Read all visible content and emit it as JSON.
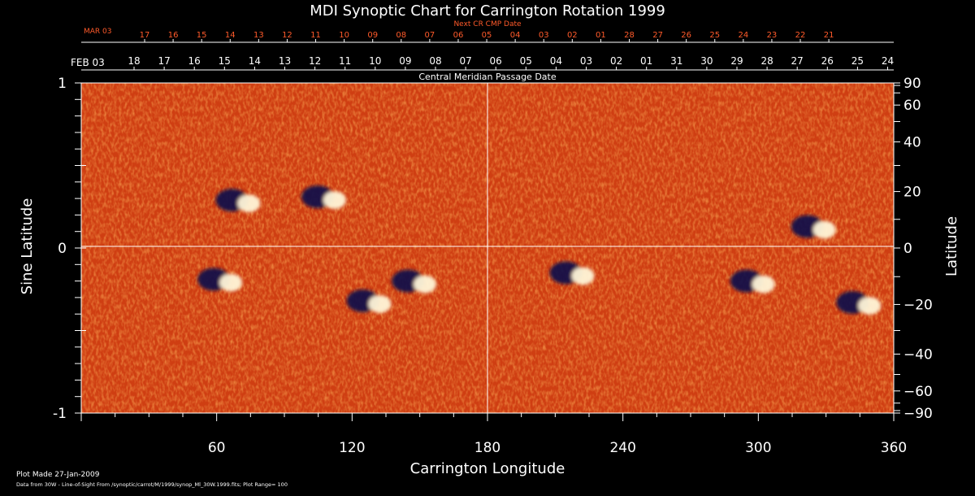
{
  "chart_data": {
    "type": "heatmap",
    "title": "MDI Synoptic Chart for Carrington Rotation 1999",
    "xlabel": "Carrington Longitude",
    "ylabel": "Sine Latitude",
    "y2label": "Latitude",
    "xlim": [
      0,
      360
    ],
    "ylim": [
      -1,
      1
    ],
    "x_ticks": [
      60,
      120,
      180,
      240,
      300,
      360
    ],
    "y_ticks": [
      1,
      0,
      -1
    ],
    "latitude_ticks": [
      90,
      60,
      40,
      20,
      0,
      -20,
      -40,
      -60,
      -90
    ],
    "value_range": [
      -100,
      100
    ],
    "colors": {
      "background": "#000000",
      "map_low": "#0b0f4a",
      "map_mid": "#e0561a",
      "map_high": "#fff6d8",
      "cmp_axis": "#ff5a2a"
    },
    "cmp_axis": {
      "label": "Next CR CMP Date",
      "start_label": "MAR 03",
      "labels": [
        "17",
        "16",
        "15",
        "14",
        "13",
        "12",
        "11",
        "10",
        "09",
        "08",
        "07",
        "06",
        "05",
        "04",
        "03",
        "02",
        "01",
        "28",
        "27",
        "26",
        "25",
        "24",
        "23",
        "22",
        "21"
      ]
    },
    "date_axis": {
      "label": "Central Meridian Passage Date",
      "start_label": "FEB 03",
      "labels": [
        "18",
        "17",
        "16",
        "15",
        "14",
        "13",
        "12",
        "11",
        "10",
        "09",
        "08",
        "07",
        "06",
        "05",
        "04",
        "03",
        "02",
        "01",
        "31",
        "30",
        "29",
        "28",
        "27",
        "26",
        "25",
        "24"
      ]
    },
    "active_regions": [
      {
        "lon": 70,
        "sinlat": 0.29,
        "polarity": "mixed"
      },
      {
        "lon": 108,
        "sinlat": 0.31,
        "polarity": "mixed"
      },
      {
        "lon": 62,
        "sinlat": -0.19,
        "polarity": "mixed"
      },
      {
        "lon": 128,
        "sinlat": -0.32,
        "polarity": "mixed"
      },
      {
        "lon": 148,
        "sinlat": -0.2,
        "polarity": "mixed"
      },
      {
        "lon": 218,
        "sinlat": -0.15,
        "polarity": "mixed"
      },
      {
        "lon": 298,
        "sinlat": -0.2,
        "polarity": "mixed"
      },
      {
        "lon": 325,
        "sinlat": 0.13,
        "polarity": "mixed"
      },
      {
        "lon": 345,
        "sinlat": -0.33,
        "polarity": "mixed"
      }
    ]
  },
  "footer": {
    "plot_made": "Plot Made 27-Jan-2009",
    "data_source": "Data from 30W - Line-of-Sight From /synoptic/carrot/M/1999/synop_Ml_30W.1999.fits; Plot Range= 100"
  }
}
